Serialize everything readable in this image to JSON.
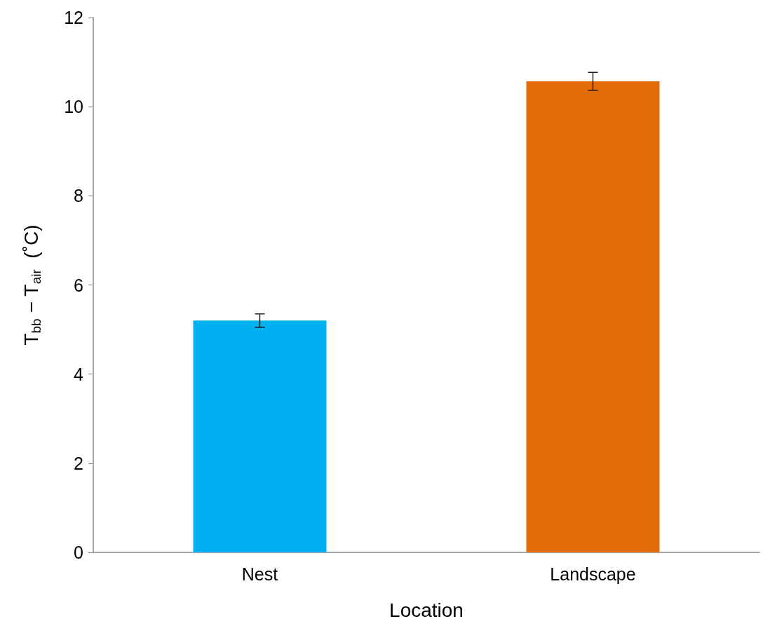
{
  "chart_data": {
    "type": "bar",
    "xlabel": "Location",
    "ylabel": "T$_{bb}$ − T$_{air}$  (˚C)",
    "categories": [
      "Nest",
      "Landscape"
    ],
    "values": [
      5.2,
      10.57
    ],
    "colors": [
      "#00b0f0",
      "#e36c0a"
    ],
    "errors": [
      0.15,
      0.2
    ],
    "ylim": [
      0,
      12
    ],
    "yticks": [
      0,
      2,
      4,
      6,
      8,
      10,
      12
    ],
    "grid": false
  }
}
